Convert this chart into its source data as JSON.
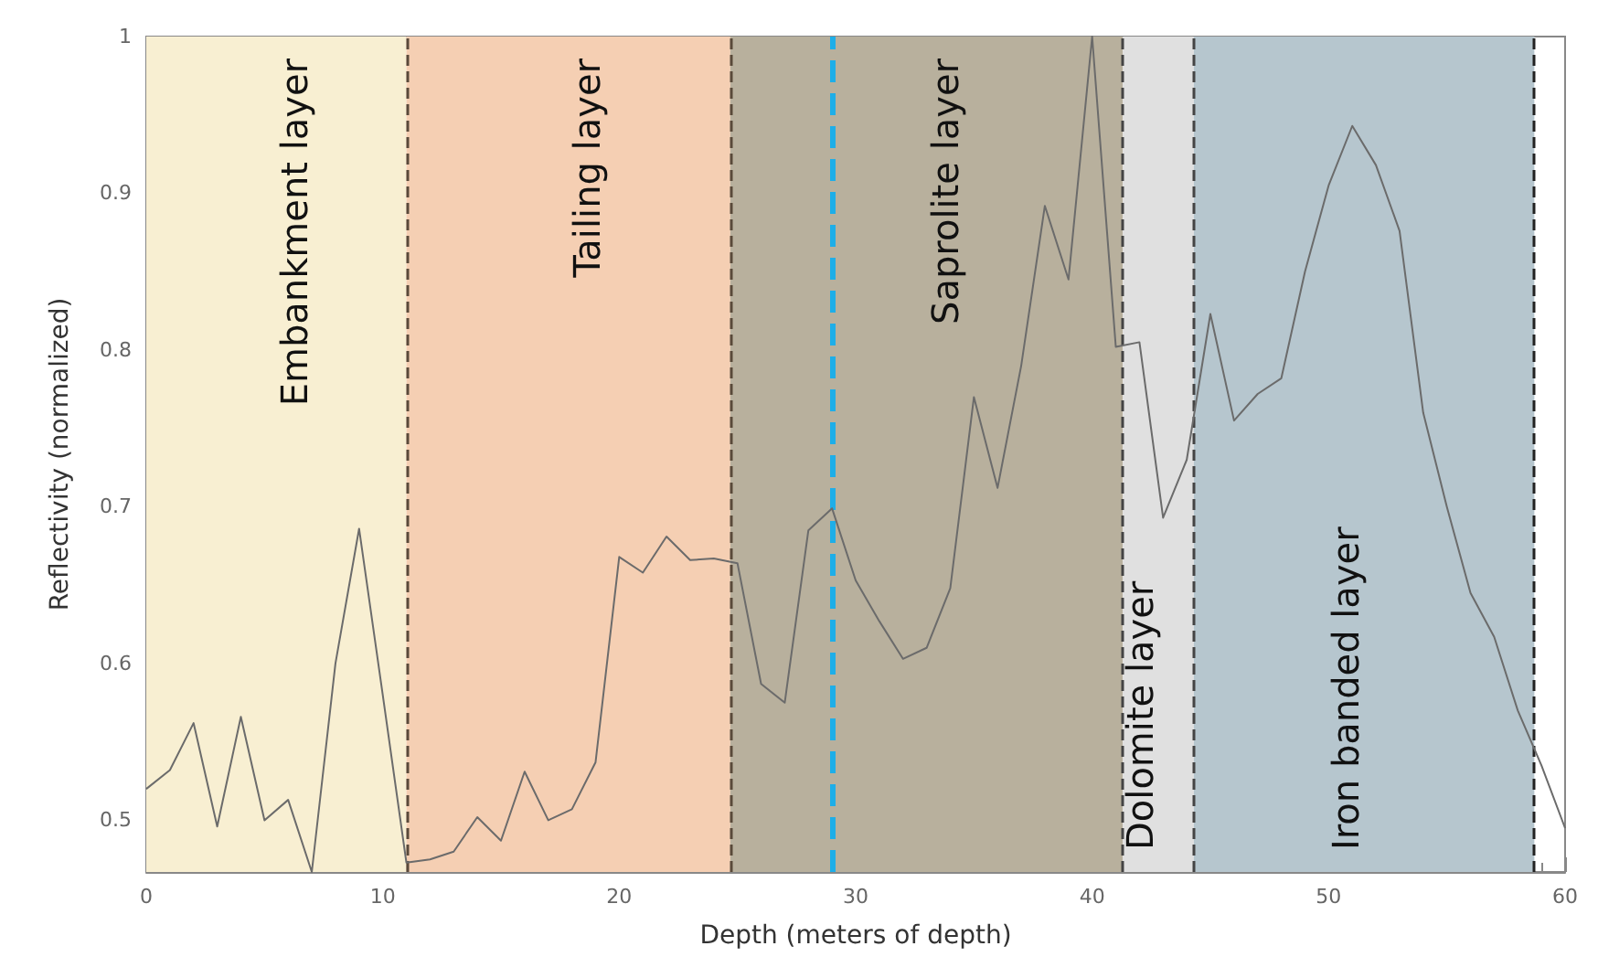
{
  "chart_data": {
    "type": "line",
    "xlabel": "Depth (meters of depth)",
    "ylabel": "Reflectivity (normalized)",
    "x": [
      0,
      1,
      2,
      3,
      4,
      5,
      6,
      7,
      8,
      9,
      10,
      11,
      12,
      13,
      14,
      15,
      16,
      17,
      18,
      19,
      20,
      21,
      22,
      23,
      24,
      25,
      26,
      27,
      28,
      29,
      30,
      31,
      32,
      33,
      34,
      35,
      36,
      37,
      38,
      39,
      40,
      41,
      42,
      43,
      44,
      45,
      46,
      47,
      48,
      49,
      50,
      51,
      52,
      53,
      54,
      55,
      56,
      57,
      58,
      59,
      60
    ],
    "series": [
      {
        "color": "#6b6b6b",
        "values": [
          0.52,
          0.532,
          0.562,
          0.496,
          0.566,
          0.5,
          0.513,
          0.467,
          0.6,
          0.686,
          0.58,
          0.473,
          0.475,
          0.48,
          0.502,
          0.487,
          0.531,
          0.5,
          0.507,
          0.537,
          0.668,
          0.658,
          0.681,
          0.666,
          0.667,
          0.664,
          0.587,
          0.575,
          0.685,
          0.699,
          0.653,
          0.627,
          0.603,
          0.61,
          0.648,
          0.77,
          0.712,
          0.79,
          0.892,
          0.845,
          1.0,
          0.802,
          0.805,
          0.693,
          0.73,
          0.823,
          0.755,
          0.772,
          0.782,
          0.85,
          0.905,
          0.943,
          0.918,
          0.876,
          0.76,
          0.7,
          0.645,
          0.617,
          0.57,
          0.535,
          0.495
        ]
      }
    ],
    "xlim": [
      0,
      60
    ],
    "xticks": [
      0,
      10,
      20,
      30,
      40,
      50,
      60
    ],
    "ylim": [
      0.467,
      1
    ],
    "yticks": [
      0.5,
      0.6,
      0.7,
      0.8,
      0.9,
      1
    ],
    "grid": false,
    "marker": "none",
    "line_style": "solid",
    "bands": [
      {
        "axis": "x",
        "from": 0,
        "to": 11,
        "label": "Embankment layer",
        "color": "#f8efd2"
      },
      {
        "axis": "x",
        "from": 11,
        "to": 24.7,
        "label": "Tailing layer",
        "color": "#f5cfb3"
      },
      {
        "axis": "x",
        "from": 24.7,
        "to": 41.3,
        "label": "Saprolite layer",
        "color": "#b8b09d"
      },
      {
        "axis": "x",
        "from": 41.3,
        "to": 44.3,
        "label": "Dolomite layer",
        "color": "#e0e0e0"
      },
      {
        "axis": "x",
        "from": 44.3,
        "to": 58.7,
        "label": "Iron banded layer",
        "color": "#b6c6ce"
      }
    ],
    "ref_lines": [
      {
        "axis": "x",
        "value": 11,
        "color": "#5a4a3a",
        "line_style": "dashed"
      },
      {
        "axis": "x",
        "value": 24.7,
        "color": "#5a4a3a",
        "line_style": "dashed"
      },
      {
        "axis": "x",
        "value": 29,
        "color": "#1eaee8",
        "line_style": "dashed"
      },
      {
        "axis": "x",
        "value": 41.3,
        "color": "#444444",
        "line_style": "dashed"
      },
      {
        "axis": "x",
        "value": 44.3,
        "color": "#444444",
        "line_style": "dashed"
      },
      {
        "axis": "x",
        "value": 58.7,
        "color": "#222222",
        "line_style": "dashed"
      }
    ]
  }
}
